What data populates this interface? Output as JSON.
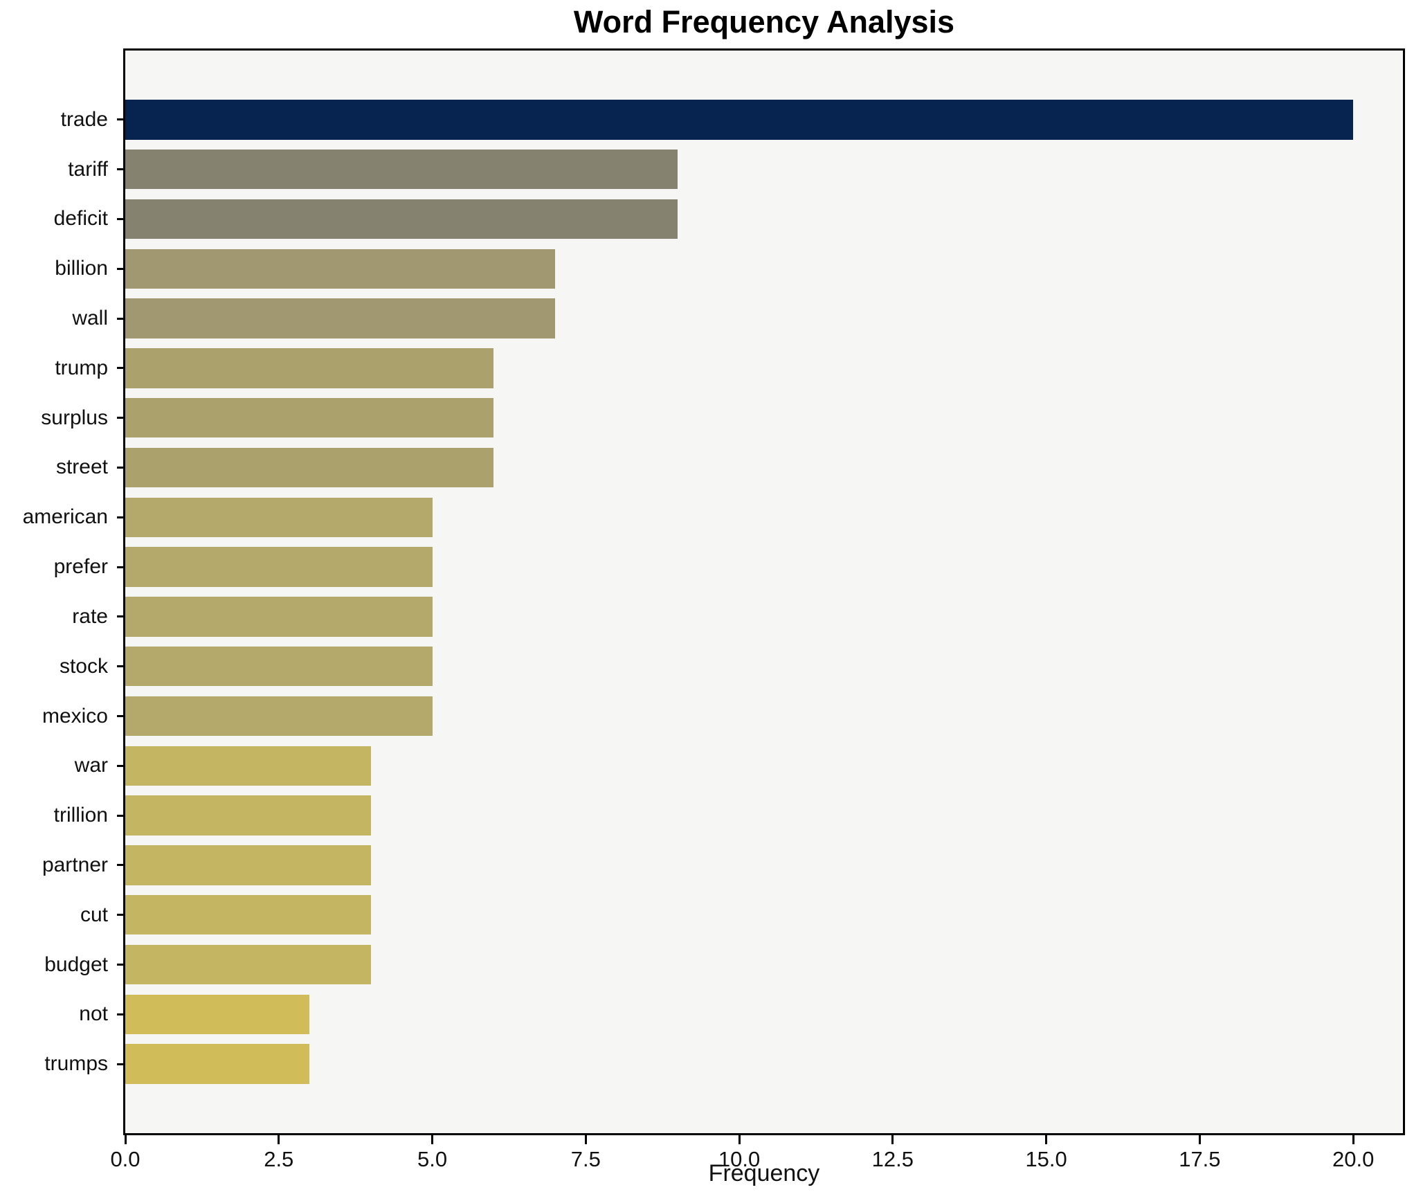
{
  "title": "Word Frequency Analysis",
  "chart_data": {
    "type": "bar",
    "orientation": "horizontal",
    "title": "Word Frequency Analysis",
    "xlabel": "Frequency",
    "ylabel": "",
    "grid": false,
    "legend": "none",
    "plot_bg": "#f6f6f4",
    "spine_color": "#000000",
    "xlim": [
      0,
      20.81
    ],
    "xticks": [
      0,
      2.5,
      5,
      7.5,
      10,
      12.5,
      15,
      17.5,
      20
    ],
    "xtick_labels": [
      "0.0",
      "2.5",
      "5.0",
      "7.5",
      "10.0",
      "12.5",
      "15.0",
      "17.5",
      "20.0"
    ],
    "categories": [
      "trade",
      "tariff",
      "deficit",
      "billion",
      "wall",
      "trump",
      "surplus",
      "street",
      "american",
      "prefer",
      "rate",
      "stock",
      "mexico",
      "war",
      "trillion",
      "partner",
      "cut",
      "budget",
      "not",
      "trumps"
    ],
    "values": [
      20,
      9,
      9,
      7,
      7,
      6,
      6,
      6,
      5,
      5,
      5,
      5,
      5,
      4,
      4,
      4,
      4,
      4,
      3,
      3
    ],
    "bar_colors": [
      "#07234f",
      "#868270",
      "#868270",
      "#a19872",
      "#a19872",
      "#aba16d",
      "#aba16d",
      "#aba16d",
      "#b4a96a",
      "#b4a96a",
      "#b4a96a",
      "#b4a96a",
      "#b4a96a",
      "#c3b561",
      "#c3b561",
      "#c3b561",
      "#c3b561",
      "#c3b561",
      "#d0bd5a",
      "#d0bd5a"
    ]
  }
}
